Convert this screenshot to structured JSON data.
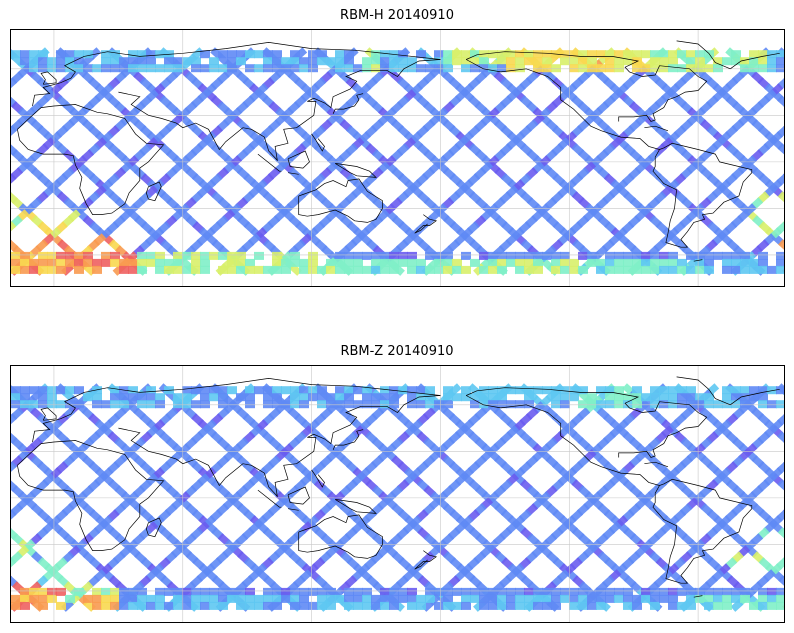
{
  "panels": [
    {
      "title": "RBM-H 20140910",
      "palette": [
        "#6a5cf0",
        "#5f8af5",
        "#5ec8f2",
        "#7ff0c8",
        "#d8f06a",
        "#f8d850",
        "#f89a50",
        "#ee6060"
      ],
      "hot_regions": [
        {
          "lon_range": [
            -22,
            38
          ],
          "lat_range": [
            -70,
            -45
          ],
          "level": 0.95
        },
        {
          "lon_range": [
            20,
            130
          ],
          "lat_range": [
            -70,
            -57
          ],
          "level": 0.55
        },
        {
          "lon_range": [
            130,
            180
          ],
          "lat_range": [
            -70,
            -60
          ],
          "level": 0.45
        },
        {
          "lon_range": [
            -180,
            -120
          ],
          "lat_range": [
            -70,
            -60
          ],
          "level": 0.55
        },
        {
          "lon_range": [
            -120,
            -60
          ],
          "lat_range": [
            -70,
            -60
          ],
          "level": 0.4
        },
        {
          "lon_range": [
            -180,
            -150
          ],
          "lat_range": [
            64,
            72
          ],
          "level": 0.6
        },
        {
          "lon_range": [
            -150,
            -85
          ],
          "lat_range": [
            62,
            72
          ],
          "level": 0.75
        },
        {
          "lon_range": [
            -85,
            -30
          ],
          "lat_range": [
            62,
            72
          ],
          "level": 0.55
        },
        {
          "lon_range": [
            -35,
            -15
          ],
          "lat_range": [
            -45,
            -20
          ],
          "level": 0.6
        },
        {
          "lon_range": [
            -15,
            10
          ],
          "lat_range": [
            -58,
            -30
          ],
          "level": 0.75
        },
        {
          "lon_range": [
            140,
            150
          ],
          "lat_range": [
            55,
            72
          ],
          "level": 0.5
        }
      ]
    },
    {
      "title": "RBM-Z 20140910",
      "palette": [
        "#6a5cf0",
        "#5f8af5",
        "#5ec8f2",
        "#7ff0c8",
        "#d8f06a",
        "#f8d850",
        "#f89a50",
        "#ee6060"
      ],
      "hot_regions": [
        {
          "lon_range": [
            -22,
            5
          ],
          "lat_range": [
            -70,
            -55
          ],
          "level": 0.95
        },
        {
          "lon_range": [
            5,
            30
          ],
          "lat_range": [
            -66,
            -55
          ],
          "level": 0.55
        },
        {
          "lon_range": [
            -180,
            -120
          ],
          "lat_range": [
            64,
            72
          ],
          "level": 0.3
        },
        {
          "lon_range": [
            -120,
            -90
          ],
          "lat_range": [
            60,
            72
          ],
          "level": 0.4
        },
        {
          "lon_range": [
            -30,
            -10
          ],
          "lat_range": [
            -45,
            -20
          ],
          "level": 0.5
        },
        {
          "lon_range": [
            -10,
            10
          ],
          "lat_range": [
            -60,
            -40
          ],
          "level": 0.45
        },
        {
          "lon_range": [
            -65,
            -20
          ],
          "lat_range": [
            -70,
            -60
          ],
          "level": 0.4
        },
        {
          "lon_range": [
            10,
            30
          ],
          "lat_range": [
            -70,
            -60
          ],
          "level": 0.85
        },
        {
          "lon_range": [
            -45,
            -30
          ],
          "lat_range": [
            -50,
            -35
          ],
          "level": 0.6
        }
      ]
    }
  ]
}
